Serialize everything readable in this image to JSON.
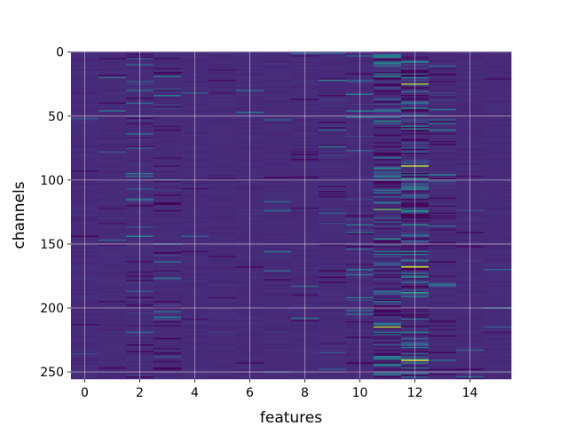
{
  "chart_data": {
    "type": "heatmap",
    "title": "",
    "xlabel": "features",
    "ylabel": "channels",
    "n_columns": 16,
    "n_rows": 256,
    "x_extent": [
      -0.5,
      15.5
    ],
    "y_extent": [
      255.5,
      -0.5
    ],
    "y_inverted": true,
    "x_ticks": [
      0,
      2,
      4,
      6,
      8,
      10,
      12,
      14
    ],
    "y_ticks": [
      0,
      50,
      100,
      150,
      200,
      250
    ],
    "grid": true,
    "grid_color": "#ffffff",
    "colormap": "viridis",
    "colormap_stops": [
      "#440154",
      "#472d7b",
      "#3b528b",
      "#2c728e",
      "#21918c",
      "#28ae80",
      "#5ec962",
      "#addc30",
      "#fde725"
    ],
    "background_level": 0.12,
    "column_activity": [
      0.02,
      0.05,
      0.16,
      0.22,
      0.02,
      0.03,
      0.03,
      0.04,
      0.05,
      0.1,
      0.12,
      0.55,
      0.5,
      0.15,
      0.03,
      0.02
    ],
    "notable_cells": [
      {
        "x": 11,
        "y": 123,
        "value": 0.75
      },
      {
        "x": 11,
        "y": 215,
        "value": 0.88
      },
      {
        "x": 11,
        "y": 146,
        "value": 0.5
      },
      {
        "x": 11,
        "y": 54,
        "value": 0.55
      },
      {
        "x": 11,
        "y": 19,
        "value": 0.5
      },
      {
        "x": 11,
        "y": 91,
        "value": 0.52
      },
      {
        "x": 12,
        "y": 25,
        "value": 0.85
      },
      {
        "x": 12,
        "y": 168,
        "value": 0.95
      },
      {
        "x": 12,
        "y": 241,
        "value": 0.95
      },
      {
        "x": 12,
        "y": 89,
        "value": 0.9
      },
      {
        "x": 12,
        "y": 188,
        "value": 0.55
      },
      {
        "x": 12,
        "y": 124,
        "value": 0.5
      },
      {
        "x": 12,
        "y": 135,
        "value": 0.5
      },
      {
        "x": 12,
        "y": 99,
        "value": 0.48
      },
      {
        "x": 12,
        "y": 107,
        "value": 0.45
      },
      {
        "x": 12,
        "y": 158,
        "value": 0.42
      }
    ]
  }
}
